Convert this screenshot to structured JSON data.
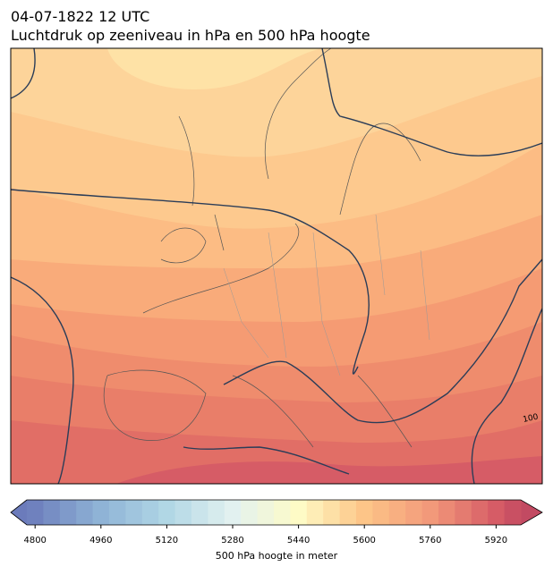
{
  "title": [
    "04-07-1822 12 UTC",
    "Luchtdruk op zeeniveau in hPa en 500 hPa hoogte"
  ],
  "map": {
    "contour_labels": [
      "100"
    ]
  },
  "colorbar": {
    "label": "500 hPa hoogte in meter",
    "lim": [
      4780,
      5980
    ],
    "step": 40,
    "ticks": [
      4800,
      4960,
      5120,
      5280,
      5440,
      5600,
      5760,
      5920
    ]
  }
}
